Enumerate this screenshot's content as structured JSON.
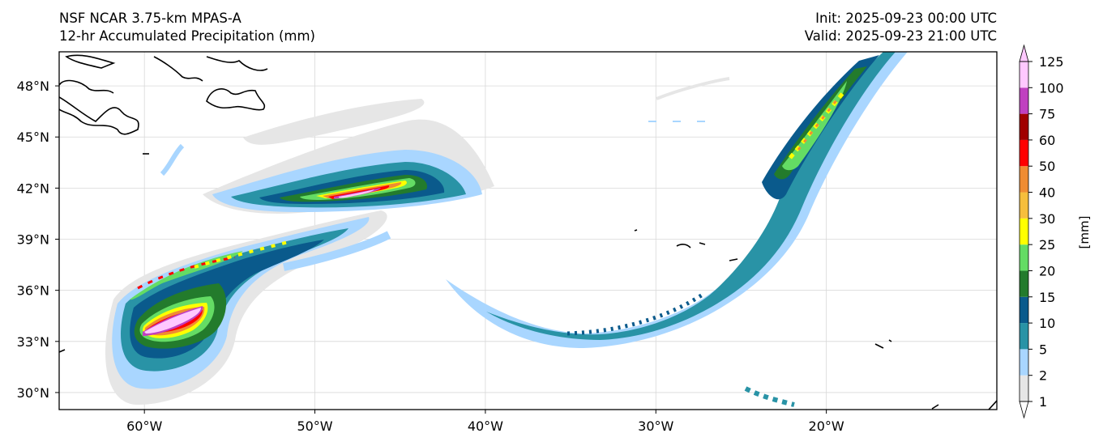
{
  "header": {
    "model": "NSF NCAR 3.75-km MPAS-A",
    "field": "12-hr Accumulated Precipitation (mm)",
    "init": "Init: 2025-09-23 00:00 UTC",
    "valid": "Valid: 2025-09-23 21:00 UTC"
  },
  "map": {
    "lon_range": [
      -65,
      -10
    ],
    "lat_range": [
      29,
      50
    ],
    "lat_ticks": [
      {
        "value": 30,
        "label": "30°N"
      },
      {
        "value": 33,
        "label": "33°N"
      },
      {
        "value": 36,
        "label": "36°N"
      },
      {
        "value": 39,
        "label": "39°N"
      },
      {
        "value": 42,
        "label": "42°N"
      },
      {
        "value": 45,
        "label": "45°N"
      },
      {
        "value": 48,
        "label": "48°N"
      }
    ],
    "lon_ticks": [
      {
        "value": -60,
        "label": "60°W"
      },
      {
        "value": -50,
        "label": "50°W"
      },
      {
        "value": -40,
        "label": "40°W"
      },
      {
        "value": -30,
        "label": "30°W"
      },
      {
        "value": -20,
        "label": "20°W"
      }
    ]
  },
  "colorbar": {
    "label": "[mm]",
    "levels": [
      1,
      2,
      5,
      10,
      15,
      20,
      25,
      30,
      40,
      50,
      60,
      75,
      100,
      125
    ],
    "tick_labels": [
      "1",
      "2",
      "5",
      "10",
      "15",
      "20",
      "25",
      "30",
      "40",
      "50",
      "60",
      "75",
      "100",
      "125"
    ],
    "colors": [
      "#e6e6e6",
      "#a9d6ff",
      "#2993a6",
      "#0a5a8c",
      "#237b2c",
      "#64dc64",
      "#ffff00",
      "#f6be3c",
      "#f08c32",
      "#ff0000",
      "#a00000",
      "#c040c0",
      "#ffc8ff"
    ]
  }
}
